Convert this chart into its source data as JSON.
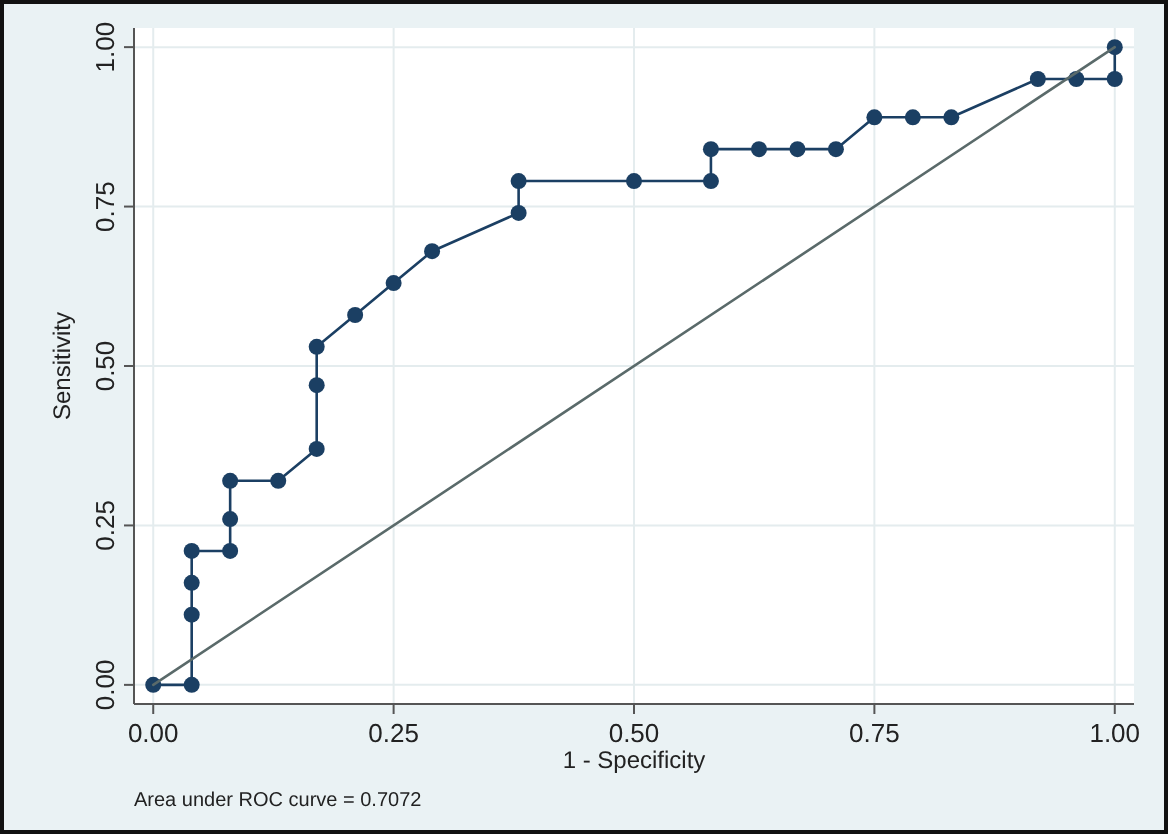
{
  "chart_data": {
    "type": "line",
    "xlabel": "1 - Specificity",
    "ylabel": "Sensitivity",
    "xlim": [
      -0.02,
      1.02
    ],
    "ylim": [
      -0.03,
      1.03
    ],
    "xticks": [
      {
        "value": 0,
        "label": "0.00"
      },
      {
        "value": 0.25,
        "label": "0.25"
      },
      {
        "value": 0.5,
        "label": "0.50"
      },
      {
        "value": 0.75,
        "label": "0.75"
      },
      {
        "value": 1,
        "label": "1.00"
      }
    ],
    "yticks": [
      {
        "value": 0,
        "label": "0.00"
      },
      {
        "value": 0.25,
        "label": "0.25"
      },
      {
        "value": 0.5,
        "label": "0.50"
      },
      {
        "value": 0.75,
        "label": "0.75"
      },
      {
        "value": 1,
        "label": "1.00"
      }
    ],
    "grid": true,
    "series": [
      {
        "color": "#1b3f63",
        "marker": "circle",
        "line_style": "solid",
        "x": [
          0,
          0.04,
          0.04,
          0.04,
          0.04,
          0.08,
          0.08,
          0.08,
          0.13,
          0.17,
          0.17,
          0.17,
          0.21,
          0.25,
          0.29,
          0.38,
          0.38,
          0.5,
          0.58,
          0.58,
          0.63,
          0.67,
          0.71,
          0.75,
          0.79,
          0.83,
          0.92,
          0.96,
          1,
          1
        ],
        "values": [
          0,
          0,
          0.11,
          0.16,
          0.21,
          0.21,
          0.26,
          0.32,
          0.32,
          0.37,
          0.47,
          0.53,
          0.58,
          0.63,
          0.68,
          0.74,
          0.79,
          0.79,
          0.79,
          0.84,
          0.84,
          0.84,
          0.84,
          0.89,
          0.89,
          0.89,
          0.95,
          0.95,
          0.95,
          1
        ]
      },
      {
        "color": "#5a6a6a",
        "marker": "none",
        "line_style": "solid",
        "x": [
          0,
          1
        ],
        "values": [
          0,
          1
        ]
      }
    ],
    "annotations": [
      "Area under ROC curve = 0.7072"
    ]
  }
}
